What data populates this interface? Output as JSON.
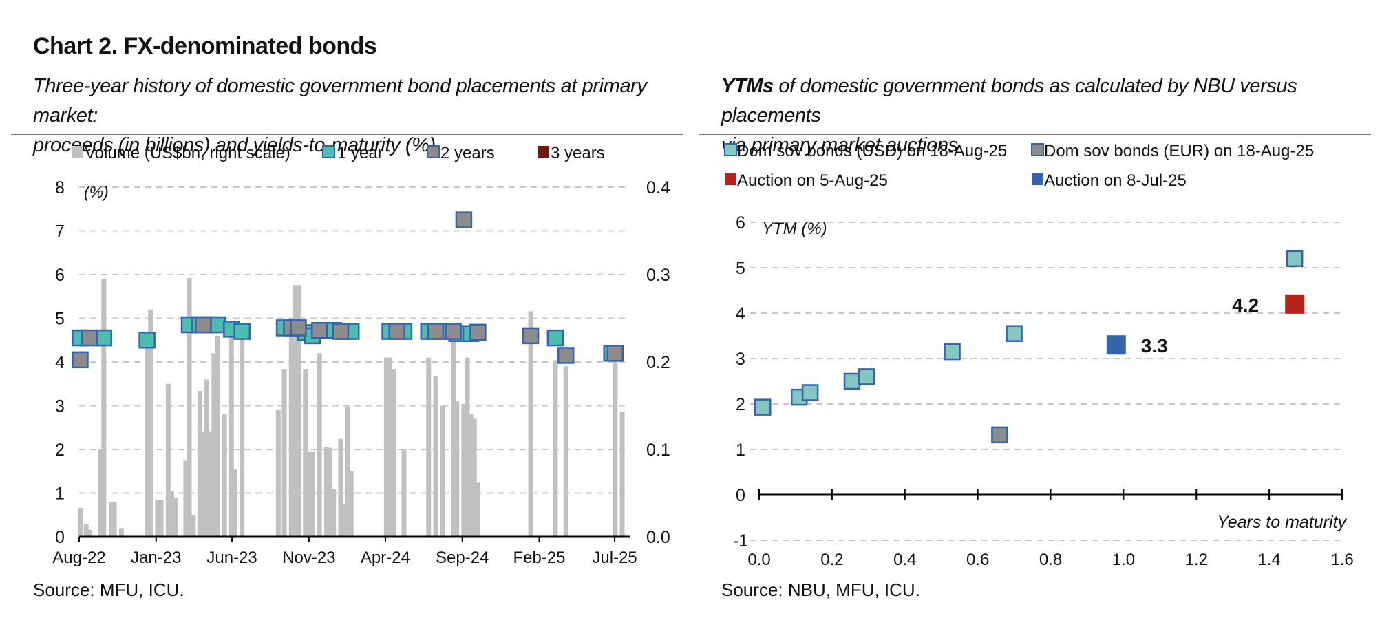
{
  "header": {
    "title": "Chart 2. FX-denominated bonds",
    "left_subtitle_line1": "Three-year history of domestic government bond placements at primary market:",
    "left_subtitle_line2": "proceeds (in billions) and yields-to-maturity (%)",
    "right_subtitle_bold": "YTMs",
    "right_subtitle_line1": " of domestic government bonds as calculated by NBU versus placements",
    "right_subtitle_line2": "via primary market auctions"
  },
  "footer": {
    "left_source": "Source: MFU, ICU.",
    "right_source": "Source: NBU, MFU, ICU."
  },
  "colors": {
    "bar": "#c0c0c0",
    "one_year": "#4dbdb0",
    "two_years": "#8c8c8c",
    "three_years": "#6b1a14",
    "usd": "#84c6c0",
    "eur": "#8c8c8c",
    "auction_aug": "#b8231c",
    "auction_jul": "#3464ac",
    "marker_border": "#3464ac",
    "gridline": "#c8c8c8"
  },
  "chart_data": [
    {
      "type": "bar+scatter",
      "legend": {
        "volume": "Volume (US$bn, right scale)",
        "one_year": "1 year",
        "two_years": "2 years",
        "three_years": "3 years"
      },
      "left_axis_unit": "(%)",
      "ylim_left": [
        0,
        8
      ],
      "yticks_left": [
        "0",
        "1",
        "2",
        "3",
        "4",
        "5",
        "6",
        "7",
        "8"
      ],
      "ylim_right": [
        0,
        0.4
      ],
      "yticks_right": [
        "0.0",
        "0.1",
        "0.2",
        "0.3",
        "0.4"
      ],
      "xlim": [
        "2022-08-01",
        "2025-07-31"
      ],
      "xticks": [
        {
          "date": "2022-08-01",
          "label": "Aug-22"
        },
        {
          "date": "2023-01-01",
          "label": "Jan-23"
        },
        {
          "date": "2023-06-01",
          "label": "Jun-23"
        },
        {
          "date": "2023-11-01",
          "label": "Nov-23"
        },
        {
          "date": "2024-04-01",
          "label": "Apr-24"
        },
        {
          "date": "2024-09-01",
          "label": "Sep-24"
        },
        {
          "date": "2025-02-01",
          "label": "Feb-25"
        },
        {
          "date": "2025-07-01",
          "label": "Jul-25"
        }
      ],
      "volume": [
        [
          "2022-08-03",
          0.033
        ],
        [
          "2022-08-15",
          0.015
        ],
        [
          "2022-08-22",
          0.008
        ],
        [
          "2022-09-12",
          0.1
        ],
        [
          "2022-09-19",
          0.295
        ],
        [
          "2022-10-05",
          0.04
        ],
        [
          "2022-10-10",
          0.04
        ],
        [
          "2022-10-24",
          0.01
        ],
        [
          "2022-12-14",
          0.22
        ],
        [
          "2022-12-21",
          0.26
        ],
        [
          "2023-01-04",
          0.042
        ],
        [
          "2023-01-11",
          0.042
        ],
        [
          "2023-01-25",
          0.175
        ],
        [
          "2023-02-01",
          0.052
        ],
        [
          "2023-02-08",
          0.045
        ],
        [
          "2023-03-01",
          0.087
        ],
        [
          "2023-03-08",
          0.296
        ],
        [
          "2023-03-16",
          0.025
        ],
        [
          "2023-03-29",
          0.167
        ],
        [
          "2023-04-05",
          0.12
        ],
        [
          "2023-04-12",
          0.18
        ],
        [
          "2023-04-19",
          0.12
        ],
        [
          "2023-04-26",
          0.21
        ],
        [
          "2023-05-03",
          0.23
        ],
        [
          "2023-05-17",
          0.14
        ],
        [
          "2023-05-31",
          0.235
        ],
        [
          "2023-06-07",
          0.077
        ],
        [
          "2023-06-21",
          0.23
        ],
        [
          "2023-09-01",
          0.145
        ],
        [
          "2023-09-13",
          0.192
        ],
        [
          "2023-09-27",
          0.25
        ],
        [
          "2023-10-04",
          0.288
        ],
        [
          "2023-10-11",
          0.288
        ],
        [
          "2023-10-25",
          0.192
        ],
        [
          "2023-11-01",
          0.097
        ],
        [
          "2023-11-08",
          0.097
        ],
        [
          "2023-11-22",
          0.21
        ],
        [
          "2023-12-06",
          0.103
        ],
        [
          "2023-12-13",
          0.102
        ],
        [
          "2023-12-20",
          0.055
        ],
        [
          "2024-01-03",
          0.112
        ],
        [
          "2024-01-10",
          0.038
        ],
        [
          "2024-01-17",
          0.149
        ],
        [
          "2024-01-24",
          0.075
        ],
        [
          "2024-04-03",
          0.205
        ],
        [
          "2024-04-10",
          0.205
        ],
        [
          "2024-04-17",
          0.192
        ],
        [
          "2024-05-08",
          0.1
        ],
        [
          "2024-06-26",
          0.205
        ],
        [
          "2024-07-10",
          0.184
        ],
        [
          "2024-07-24",
          0.15
        ],
        [
          "2024-08-14",
          0.23
        ],
        [
          "2024-08-21",
          0.155
        ],
        [
          "2024-09-04",
          0.152
        ],
        [
          "2024-09-11",
          0.205
        ],
        [
          "2024-09-18",
          0.14
        ],
        [
          "2024-09-25",
          0.135
        ],
        [
          "2024-10-02",
          0.062
        ],
        [
          "2025-01-15",
          0.258
        ],
        [
          "2025-03-05",
          0.202
        ],
        [
          "2025-03-26",
          0.195
        ],
        [
          "2025-07-02",
          0.205
        ],
        [
          "2025-07-16",
          0.143
        ]
      ],
      "ytm_1_year": [
        [
          "2022-08-03",
          4.55
        ],
        [
          "2022-09-19",
          4.55
        ],
        [
          "2022-12-14",
          4.5
        ],
        [
          "2023-03-08",
          4.85
        ],
        [
          "2023-03-29",
          4.85
        ],
        [
          "2023-04-19",
          4.85
        ],
        [
          "2023-05-03",
          4.85
        ],
        [
          "2023-05-31",
          4.75
        ],
        [
          "2023-06-21",
          4.7
        ],
        [
          "2023-09-13",
          4.78
        ],
        [
          "2023-10-04",
          4.78
        ],
        [
          "2023-10-25",
          4.67
        ],
        [
          "2023-11-08",
          4.6
        ],
        [
          "2023-12-06",
          4.72
        ],
        [
          "2023-12-20",
          4.72
        ],
        [
          "2024-01-10",
          4.7
        ],
        [
          "2024-01-24",
          4.7
        ],
        [
          "2024-04-10",
          4.7
        ],
        [
          "2024-05-08",
          4.7
        ],
        [
          "2024-06-26",
          4.7
        ],
        [
          "2024-07-24",
          4.7
        ],
        [
          "2024-08-21",
          4.65
        ],
        [
          "2024-09-18",
          4.65
        ],
        [
          "2025-03-05",
          4.55
        ],
        [
          "2025-06-25",
          4.2
        ]
      ],
      "ytm_2_years": [
        [
          "2022-08-03",
          4.05
        ],
        [
          "2022-08-22",
          4.55
        ],
        [
          "2023-04-05",
          4.85
        ],
        [
          "2023-09-27",
          4.78
        ],
        [
          "2023-10-11",
          4.78
        ],
        [
          "2023-11-22",
          4.72
        ],
        [
          "2024-01-03",
          4.7
        ],
        [
          "2024-04-24",
          4.7
        ],
        [
          "2024-07-10",
          4.7
        ],
        [
          "2024-08-14",
          4.7
        ],
        [
          "2024-09-04",
          7.25
        ],
        [
          "2024-10-02",
          4.68
        ],
        [
          "2025-01-15",
          4.6
        ],
        [
          "2025-03-26",
          4.15
        ],
        [
          "2025-07-02",
          4.2
        ]
      ],
      "ytm_3_years": []
    },
    {
      "type": "scatter",
      "legend": {
        "usd": "Dom sov bonds (USD) on 18-Aug-25",
        "eur": "Dom sov bonds (EUR) on 18-Aug-25",
        "auction_aug": "Auction on 5-Aug-25",
        "auction_jul": "Auction on 8-Jul-25"
      },
      "ylabel": "YTM (%)",
      "xlabel": "Years to maturity",
      "xlim": [
        0,
        1.6
      ],
      "xticks": [
        "0.0",
        "0.2",
        "0.4",
        "0.6",
        "0.8",
        "1.0",
        "1.2",
        "1.4",
        "1.6"
      ],
      "ylim": [
        -1,
        6
      ],
      "yticks": [
        "-1",
        "0",
        "1",
        "2",
        "3",
        "4",
        "5",
        "6"
      ],
      "usd": [
        [
          0.01,
          1.93
        ],
        [
          0.11,
          2.15
        ],
        [
          0.14,
          2.25
        ],
        [
          0.255,
          2.5
        ],
        [
          0.295,
          2.6
        ],
        [
          0.53,
          3.15
        ],
        [
          0.7,
          3.55
        ],
        [
          1.47,
          5.2
        ]
      ],
      "eur": [
        [
          0.66,
          1.32
        ]
      ],
      "auction_aug": [
        [
          1.47,
          4.2
        ]
      ],
      "auction_aug_label": "4.2",
      "auction_jul": [
        [
          0.98,
          3.3
        ]
      ],
      "auction_jul_label": "3.3"
    }
  ]
}
